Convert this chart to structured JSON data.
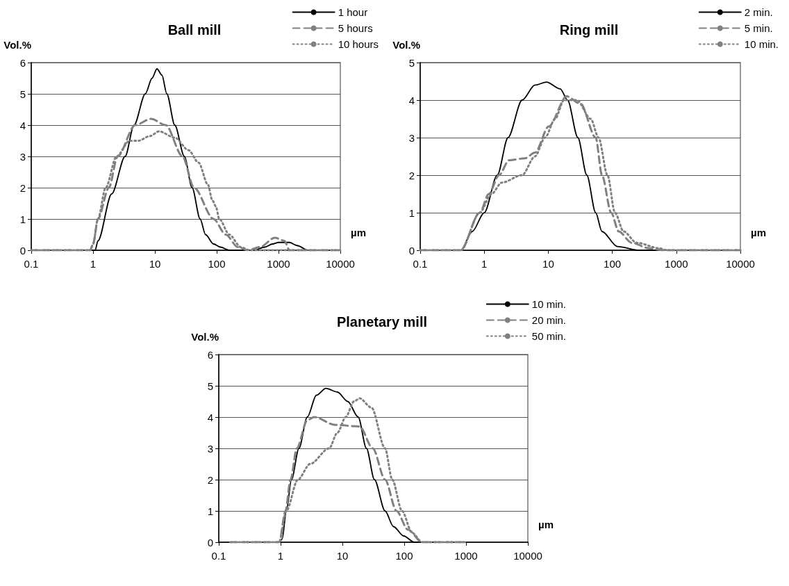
{
  "chart_data": [
    {
      "type": "line",
      "title": "Ball mill",
      "xlabel": "µm",
      "ylabel": "Vol.%",
      "log": "x",
      "xlim": [
        0.1,
        10000
      ],
      "xticks": [
        0.1,
        1,
        10,
        100,
        1000,
        10000
      ],
      "ylim": [
        0,
        6
      ],
      "yticks": [
        0,
        1,
        2,
        3,
        4,
        5,
        6
      ],
      "grid": "y",
      "legend": "top right",
      "marker": "none",
      "series": [
        {
          "name": "1 hour",
          "color": "#000000",
          "line_style": "solid",
          "x": [
            0.1,
            0.3,
            0.6,
            1,
            1.08,
            1.2,
            2,
            3.3,
            4.6,
            7,
            9,
            10.8,
            13,
            15.6,
            21,
            30,
            40,
            54,
            66,
            89,
            115,
            160,
            250,
            400,
            600,
            800,
            1000,
            1500,
            2000,
            3000,
            5000,
            10000
          ],
          "values": [
            0,
            0,
            0,
            0,
            0,
            0.3,
            1.8,
            3,
            4,
            5,
            5.5,
            5.8,
            5.6,
            5,
            4,
            3,
            2,
            1,
            0.5,
            0.2,
            0.1,
            0,
            0,
            0,
            0.1,
            0.2,
            0.25,
            0.25,
            0.15,
            0,
            0,
            0
          ]
        },
        {
          "name": "5 hours",
          "color": "#808080",
          "line_style": "dashed",
          "x": [
            0.1,
            0.3,
            0.6,
            0.9,
            1,
            1.2,
            1.8,
            2.5,
            4.8,
            8.7,
            15,
            28,
            43,
            89,
            140,
            220,
            320,
            500,
            870,
            1250,
            1500,
            3000,
            10000
          ],
          "values": [
            0,
            0,
            0,
            0,
            0.2,
            1,
            2,
            3,
            4,
            4.2,
            4,
            3,
            2,
            1,
            0.5,
            0.1,
            0,
            0.1,
            0.4,
            0.3,
            0,
            0,
            0
          ]
        },
        {
          "name": "10 hours",
          "color": "#808080",
          "line_style": "dotted",
          "x": [
            0.1,
            0.3,
            0.6,
            0.9,
            1,
            1.2,
            1.6,
            2.4,
            3.9,
            5.4,
            8.3,
            11.7,
            21,
            35,
            51,
            72,
            85,
            97,
            110,
            160,
            245,
            340,
            1000,
            3000,
            10000
          ],
          "values": [
            0,
            0,
            0,
            0,
            0.2,
            1,
            2,
            3,
            3.5,
            3.5,
            3.65,
            3.8,
            3.6,
            3.2,
            2.8,
            2.1,
            1.6,
            1.4,
            1,
            0.5,
            0.1,
            0,
            0,
            0,
            0
          ]
        }
      ]
    },
    {
      "type": "line",
      "title": "Ring mill",
      "xlabel": "µm",
      "ylabel": "Vol.%",
      "log": "x",
      "xlim": [
        0.1,
        10000
      ],
      "xticks": [
        0.1,
        1,
        10,
        100,
        1000,
        10000
      ],
      "ylim": [
        0,
        5
      ],
      "yticks": [
        0,
        1,
        2,
        3,
        4,
        5
      ],
      "grid": "y",
      "legend": "top right",
      "marker": "none",
      "series": [
        {
          "name": "2 min.",
          "color": "#000000",
          "line_style": "solid",
          "x": [
            0.1,
            0.2,
            0.43,
            0.65,
            1,
            1.6,
            2.35,
            3.9,
            6.2,
            9.4,
            15.4,
            20,
            29,
            40,
            55,
            69,
            120,
            265,
            1000,
            10000
          ],
          "values": [
            0,
            0,
            0,
            0.5,
            1,
            2,
            3,
            4,
            4.4,
            4.48,
            4.3,
            4,
            3,
            2,
            1,
            0.5,
            0.1,
            0,
            0,
            0
          ]
        },
        {
          "name": "5 min.",
          "color": "#808080",
          "line_style": "dashed",
          "x": [
            0.1,
            0.2,
            0.43,
            0.85,
            1.18,
            1.7,
            2.45,
            4.3,
            6.2,
            10.2,
            19.4,
            32,
            55,
            69,
            96,
            126,
            200,
            380,
            660,
            2000,
            10000
          ],
          "values": [
            0,
            0,
            0,
            1,
            1.5,
            2,
            2.4,
            2.45,
            2.6,
            3.3,
            4.1,
            3.9,
            3,
            2,
            1,
            0.5,
            0.2,
            0.05,
            0,
            0,
            0
          ]
        },
        {
          "name": "10 min.",
          "color": "#808080",
          "line_style": "dotted",
          "x": [
            0.1,
            0.2,
            0.43,
            0.85,
            1.3,
            1.87,
            3.9,
            6.2,
            8.9,
            12.8,
            17.6,
            28,
            46,
            61,
            84,
            110,
            150,
            240,
            550,
            720,
            2000,
            10000
          ],
          "values": [
            0,
            0,
            0,
            1,
            1.5,
            1.8,
            2,
            2.5,
            3,
            3.5,
            4,
            4,
            3.5,
            3,
            2,
            1,
            0.5,
            0.2,
            0.05,
            0,
            0,
            0
          ]
        }
      ]
    },
    {
      "type": "line",
      "title": "Planetary mill",
      "xlabel": "µm",
      "ylabel": "Vol.%",
      "log": "x",
      "xlim": [
        0.1,
        10000
      ],
      "xticks": [
        0.1,
        1,
        10,
        100,
        1000,
        10000
      ],
      "ylim": [
        0,
        6
      ],
      "yticks": [
        0,
        1,
        2,
        3,
        4,
        5,
        6
      ],
      "grid": "y",
      "legend": "top right",
      "marker": "none",
      "series": [
        {
          "name": "10 min.",
          "color": "#000000",
          "line_style": "solid",
          "x": [
            0.155,
            0.3,
            0.6,
            0.95,
            1.06,
            1.24,
            1.5,
            1.98,
            2.7,
            3.8,
            5.4,
            8.3,
            12.2,
            18,
            24.5,
            33,
            49,
            67,
            98,
            145,
            300,
            1000
          ],
          "values": [
            0,
            0,
            0,
            0,
            0.1,
            1,
            2,
            3,
            4,
            4.7,
            4.92,
            4.8,
            4.5,
            4,
            3,
            2,
            1,
            0.5,
            0.2,
            0,
            0,
            0
          ]
        },
        {
          "name": "20 min.",
          "color": "#808080",
          "line_style": "dashed",
          "x": [
            0.155,
            0.3,
            0.6,
            0.95,
            1.2,
            1.45,
            1.83,
            2.7,
            3.5,
            7.7,
            19,
            31,
            49,
            75,
            115,
            195,
            400,
            1000
          ],
          "values": [
            0,
            0,
            0,
            0,
            1,
            2,
            3,
            3.9,
            4,
            3.75,
            3.7,
            3,
            2,
            1,
            0.4,
            0,
            0,
            0
          ]
        },
        {
          "name": "50 min.",
          "color": "#808080",
          "line_style": "dotted",
          "x": [
            0.155,
            0.3,
            0.6,
            0.95,
            1.24,
            1.9,
            3,
            6.1,
            8.3,
            11.3,
            15.4,
            19,
            29.6,
            49,
            64,
            92,
            134,
            195,
            400,
            1000
          ],
          "values": [
            0,
            0,
            0,
            0,
            1,
            2,
            2.5,
            3,
            3.5,
            4,
            4.5,
            4.6,
            4.3,
            3,
            2,
            1,
            0.3,
            0,
            0,
            0
          ]
        }
      ]
    }
  ]
}
